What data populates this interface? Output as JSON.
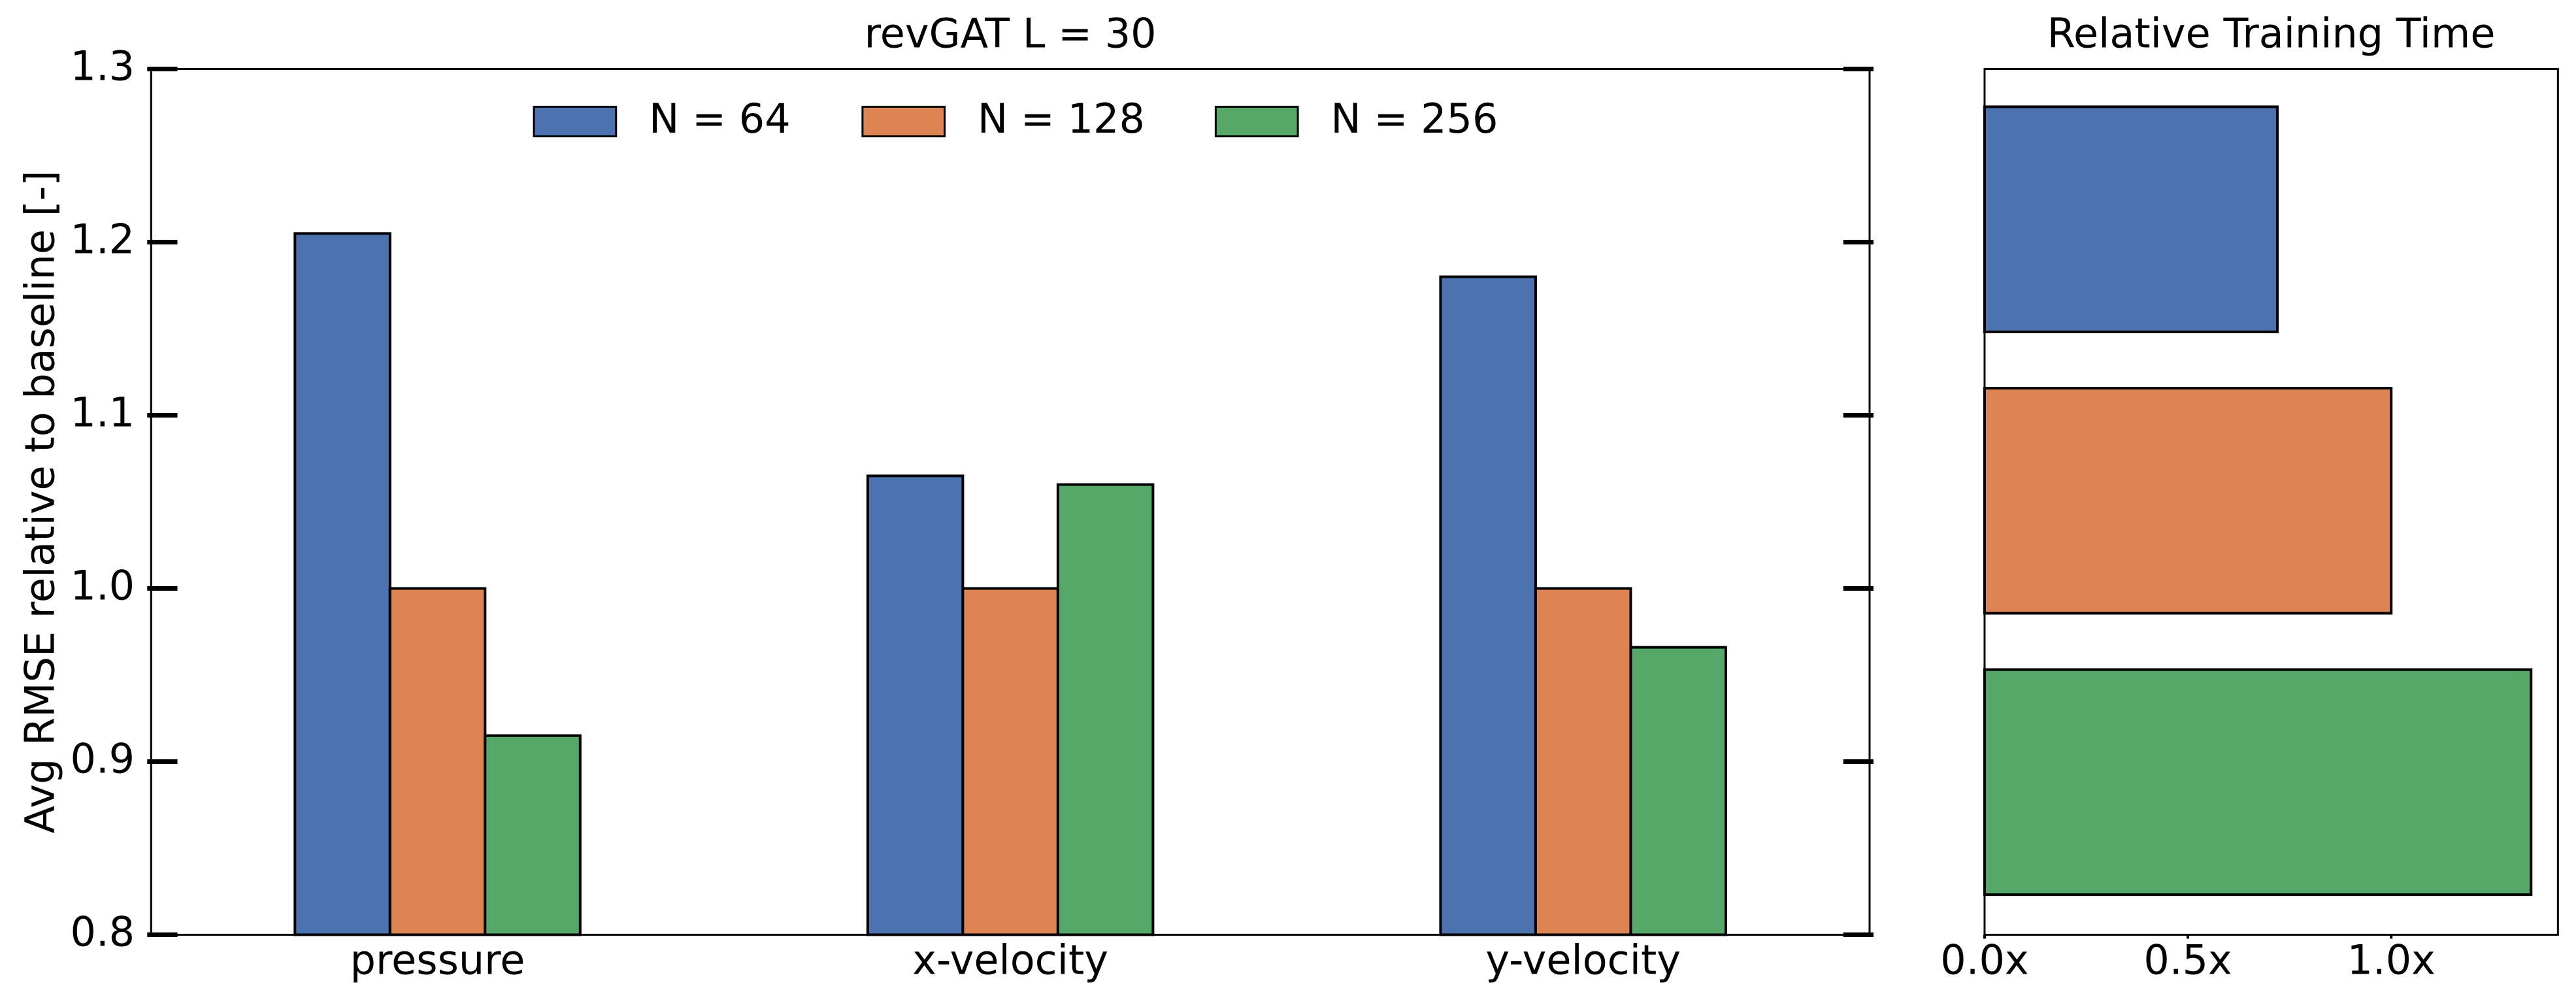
{
  "chart_data": [
    {
      "type": "bar",
      "title": "revGAT L = 30",
      "y_label": "Avg RMSE relative to baseline [-]",
      "categories": [
        "pressure",
        "x-velocity",
        "y-velocity"
      ],
      "series": [
        {
          "name": "N = 64",
          "color": "#4c72b0",
          "values": [
            1.205,
            1.065,
            1.18
          ]
        },
        {
          "name": "N = 128",
          "color": "#dd8452",
          "values": [
            1.0,
            1.0,
            1.0
          ]
        },
        {
          "name": "N = 256",
          "color": "#55a868",
          "values": [
            0.915,
            1.06,
            0.966
          ]
        }
      ],
      "ylim": [
        0.8,
        1.3
      ],
      "yticks": [
        0.8,
        0.9,
        {
          "value": 1,
          "label": "1.0"
        },
        1.1,
        1.2,
        1.3
      ]
    },
    {
      "type": "barh",
      "title": "Relative Training Time",
      "values": [
        0.72,
        1.0,
        1.344
      ],
      "colors": [
        "#4c72b0",
        "#dd8452",
        "#55a868"
      ],
      "xlim": [
        0,
        1.41
      ],
      "xticks": [
        {
          "value": 0,
          "label": "0.0x"
        },
        {
          "value": 0.5,
          "label": "0.5x"
        },
        {
          "value": 1,
          "label": "1.0x"
        }
      ]
    }
  ]
}
